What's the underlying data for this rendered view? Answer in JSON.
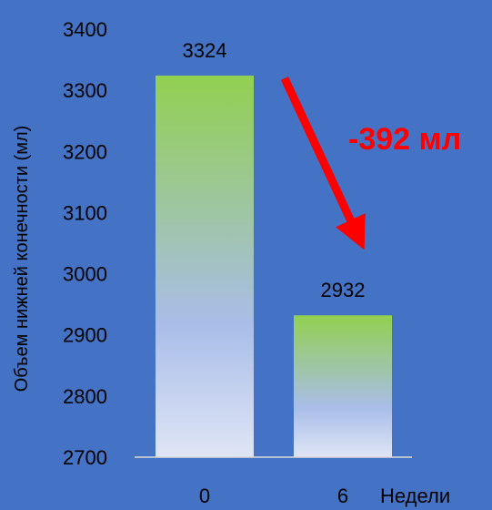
{
  "chart_data": {
    "type": "bar",
    "categories": [
      "0",
      "6"
    ],
    "values": [
      3324,
      2932
    ],
    "data_labels": [
      "3324",
      "2932"
    ],
    "xlabel": "Недели",
    "ylabel": "Объем нижней конечности (мл)",
    "ylim": [
      2700,
      3400
    ],
    "yticks": [
      2700,
      2800,
      2900,
      3000,
      3100,
      3200,
      3300,
      3400
    ],
    "grid": false,
    "legend": "none",
    "annotation": {
      "text": "-392 мл",
      "color": "#ff0000",
      "arrow": "from first bar down to second bar"
    },
    "colors": {
      "background": "#4472c4",
      "bar_top": "#92d050",
      "bar_mid": "#a9bde8",
      "bar_bottom": "#dfe5f5",
      "axis_line": "#d9d9d9",
      "arrow": "#ff0000"
    }
  }
}
